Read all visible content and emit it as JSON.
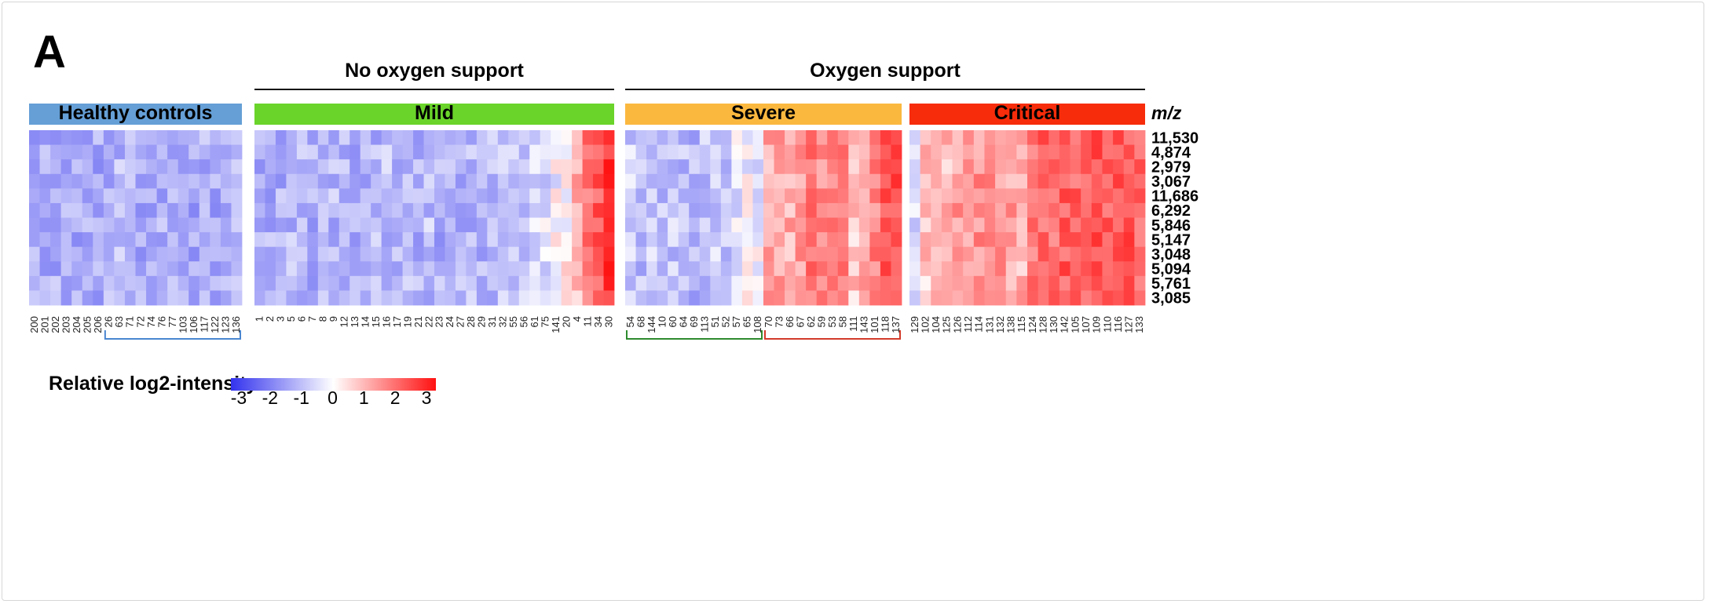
{
  "panel_label": "A",
  "legend": {
    "title": "Relative log2-intensity",
    "ticks": [
      -3,
      -2,
      -1,
      0,
      1,
      2,
      3
    ],
    "color_low": "#3333ee",
    "color_mid": "#ffffff",
    "color_high": "#ff1111"
  },
  "chart_data": {
    "type": "heatmap",
    "value_range": [
      -3,
      3
    ],
    "row_header": "m/z",
    "rows": [
      "11,530",
      "4,874",
      "2,979",
      "3,067",
      "11,686",
      "6,292",
      "5,846",
      "5,147",
      "3,048",
      "5,094",
      "5,761",
      "3,085"
    ],
    "support_groups": [
      {
        "label": "No oxygen support",
        "groups": [
          "Mild"
        ]
      },
      {
        "label": "Oxygen support",
        "groups": [
          "Severe",
          "Critical"
        ]
      }
    ],
    "groups": [
      {
        "name": "Healthy controls",
        "color": "#659fd6",
        "columns": [
          "200",
          "201",
          "202",
          "203",
          "204",
          "205",
          "206",
          "26",
          "63",
          "71",
          "72",
          "74",
          "76",
          "77",
          "103",
          "106",
          "117",
          "122",
          "123",
          "136"
        ],
        "trend": [
          -1.0,
          -1.1,
          -1.0,
          -1.1,
          -1.1,
          -1.0,
          -1.1,
          -1.0,
          -0.9,
          -1.0,
          -1.1,
          -1.2,
          -1.0,
          -0.9,
          -1.0,
          -1.1,
          -1.0,
          -1.1,
          -1.0,
          -1.0
        ]
      },
      {
        "name": "Mild",
        "color": "#6ad42a",
        "columns": [
          "1",
          "2",
          "3",
          "5",
          "6",
          "7",
          "8",
          "9",
          "12",
          "13",
          "14",
          "15",
          "16",
          "17",
          "19",
          "21",
          "22",
          "23",
          "24",
          "27",
          "28",
          "29",
          "31",
          "32",
          "55",
          "56",
          "61",
          "75",
          "141",
          "20",
          "4",
          "11",
          "34",
          "30"
        ],
        "trend": [
          -1.1,
          -1.0,
          -1.0,
          -0.9,
          -0.9,
          -1.0,
          -1.0,
          -0.9,
          -1.0,
          -1.0,
          -1.0,
          -0.9,
          -0.8,
          -1.0,
          -0.9,
          -1.0,
          -0.8,
          -1.0,
          -1.0,
          -0.9,
          -0.9,
          -1.0,
          -0.8,
          -0.8,
          -0.7,
          -0.6,
          -0.5,
          -0.4,
          -0.1,
          0.1,
          0.8,
          1.5,
          1.9,
          2.5
        ]
      },
      {
        "name": "Severe",
        "color": "#fbb83f",
        "columns": [
          "54",
          "68",
          "144",
          "10",
          "60",
          "64",
          "69",
          "113",
          "51",
          "52",
          "57",
          "65",
          "108",
          "70",
          "73",
          "66",
          "67",
          "62",
          "59",
          "53",
          "58",
          "111",
          "143",
          "101",
          "118",
          "137"
        ],
        "trend": [
          -0.6,
          -0.8,
          -0.5,
          -0.8,
          -0.7,
          -0.8,
          -0.9,
          -0.7,
          -0.6,
          -0.8,
          -0.4,
          -0.1,
          -0.2,
          0.9,
          1.0,
          0.9,
          1.1,
          1.5,
          1.2,
          1.3,
          1.5,
          0.6,
          0.9,
          1.4,
          1.9,
          2.1
        ]
      },
      {
        "name": "Critical",
        "color": "#f72c0a",
        "columns": [
          "129",
          "102",
          "104",
          "125",
          "126",
          "112",
          "114",
          "131",
          "132",
          "138",
          "115",
          "124",
          "128",
          "130",
          "142",
          "105",
          "107",
          "109",
          "110",
          "116",
          "127",
          "133"
        ],
        "trend": [
          -0.6,
          0.6,
          1.0,
          0.7,
          1.1,
          1.0,
          1.2,
          1.1,
          1.2,
          1.0,
          0.8,
          1.6,
          1.8,
          1.7,
          1.9,
          1.8,
          1.9,
          2.0,
          1.9,
          2.1,
          2.0,
          1.8
        ]
      }
    ],
    "brackets": [
      {
        "group": "Healthy controls",
        "from": "26",
        "to": "136",
        "color": "#4a86cf"
      },
      {
        "group": "Severe",
        "from": "54",
        "to": "108",
        "color": "#2e8b2e"
      },
      {
        "group": "Severe",
        "from": "70",
        "to": "137",
        "color": "#d23a2a"
      }
    ]
  }
}
